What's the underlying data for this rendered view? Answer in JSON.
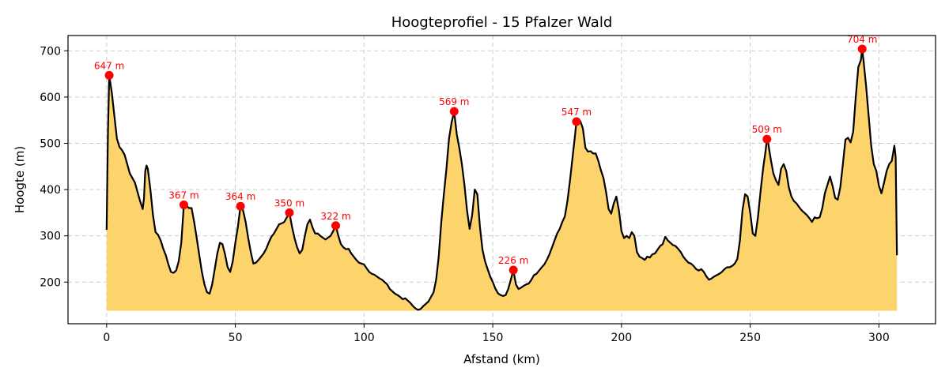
{
  "chart_data": {
    "type": "area",
    "title": "Hoogteprofiel - 15 Pfalzer Wald",
    "xlabel": "Afstand (km)",
    "ylabel": "Hoogte (m)",
    "xlim": [
      -15,
      322
    ],
    "ylim": [
      110,
      733
    ],
    "xticks": [
      0,
      50,
      100,
      150,
      200,
      250,
      300
    ],
    "yticks": [
      200,
      300,
      400,
      500,
      600,
      700
    ],
    "grid": true,
    "fill_base": 138,
    "colors": {
      "fill": "#fdd46b",
      "line": "#000000",
      "peak": "#ff0000",
      "grid": "#cccccc"
    },
    "profile": [
      [
        0,
        313
      ],
      [
        0.5,
        520
      ],
      [
        1,
        647
      ],
      [
        2,
        610
      ],
      [
        3,
        560
      ],
      [
        4,
        510
      ],
      [
        5,
        492
      ],
      [
        6,
        485
      ],
      [
        7,
        475
      ],
      [
        8,
        455
      ],
      [
        9,
        435
      ],
      [
        10,
        425
      ],
      [
        11,
        415
      ],
      [
        12,
        395
      ],
      [
        13,
        375
      ],
      [
        14,
        358
      ],
      [
        14.5,
        380
      ],
      [
        15,
        440
      ],
      [
        15.5,
        452
      ],
      [
        16,
        445
      ],
      [
        17,
        400
      ],
      [
        18,
        345
      ],
      [
        19,
        308
      ],
      [
        20,
        302
      ],
      [
        21,
        290
      ],
      [
        22,
        272
      ],
      [
        23,
        258
      ],
      [
        24,
        238
      ],
      [
        25,
        222
      ],
      [
        26,
        220
      ],
      [
        27,
        225
      ],
      [
        28,
        245
      ],
      [
        29,
        285
      ],
      [
        30,
        367
      ],
      [
        31,
        365
      ],
      [
        32,
        360
      ],
      [
        33,
        360
      ],
      [
        34,
        330
      ],
      [
        35,
        295
      ],
      [
        36,
        258
      ],
      [
        37,
        222
      ],
      [
        38,
        195
      ],
      [
        39,
        178
      ],
      [
        40,
        175
      ],
      [
        41,
        195
      ],
      [
        42,
        228
      ],
      [
        43,
        262
      ],
      [
        44,
        285
      ],
      [
        45,
        282
      ],
      [
        46,
        260
      ],
      [
        47,
        232
      ],
      [
        48,
        222
      ],
      [
        49,
        245
      ],
      [
        50,
        285
      ],
      [
        51,
        320
      ],
      [
        52,
        364
      ],
      [
        53,
        355
      ],
      [
        54,
        330
      ],
      [
        55,
        295
      ],
      [
        56,
        265
      ],
      [
        57,
        240
      ],
      [
        58,
        242
      ],
      [
        59,
        248
      ],
      [
        60,
        255
      ],
      [
        61,
        262
      ],
      [
        62,
        272
      ],
      [
        63,
        286
      ],
      [
        64,
        298
      ],
      [
        65,
        305
      ],
      [
        66,
        315
      ],
      [
        67,
        325
      ],
      [
        68,
        327
      ],
      [
        69,
        330
      ],
      [
        70,
        340
      ],
      [
        71,
        350
      ],
      [
        72,
        320
      ],
      [
        73,
        295
      ],
      [
        74,
        275
      ],
      [
        75,
        262
      ],
      [
        76,
        270
      ],
      [
        77,
        300
      ],
      [
        78,
        325
      ],
      [
        79,
        335
      ],
      [
        80,
        318
      ],
      [
        81,
        305
      ],
      [
        82,
        305
      ],
      [
        83,
        300
      ],
      [
        84,
        296
      ],
      [
        85,
        292
      ],
      [
        86,
        296
      ],
      [
        87,
        300
      ],
      [
        88,
        310
      ],
      [
        89,
        322
      ],
      [
        90,
        300
      ],
      [
        91,
        282
      ],
      [
        92,
        275
      ],
      [
        93,
        271
      ],
      [
        94,
        272
      ],
      [
        95,
        262
      ],
      [
        96,
        255
      ],
      [
        97,
        248
      ],
      [
        98,
        242
      ],
      [
        99,
        240
      ],
      [
        100,
        238
      ],
      [
        101,
        230
      ],
      [
        102,
        222
      ],
      [
        103,
        218
      ],
      [
        104,
        216
      ],
      [
        105,
        212
      ],
      [
        106,
        208
      ],
      [
        107,
        205
      ],
      [
        108,
        200
      ],
      [
        109,
        195
      ],
      [
        110,
        185
      ],
      [
        111,
        180
      ],
      [
        112,
        175
      ],
      [
        113,
        172
      ],
      [
        114,
        168
      ],
      [
        115,
        163
      ],
      [
        116,
        165
      ],
      [
        117,
        160
      ],
      [
        118,
        155
      ],
      [
        119,
        148
      ],
      [
        120,
        143
      ],
      [
        121,
        140
      ],
      [
        122,
        142
      ],
      [
        123,
        148
      ],
      [
        124,
        153
      ],
      [
        125,
        158
      ],
      [
        126,
        168
      ],
      [
        127,
        178
      ],
      [
        128,
        205
      ],
      [
        129,
        255
      ],
      [
        130,
        330
      ],
      [
        131,
        390
      ],
      [
        132,
        445
      ],
      [
        133,
        510
      ],
      [
        134,
        545
      ],
      [
        135,
        569
      ],
      [
        136,
        520
      ],
      [
        137,
        490
      ],
      [
        138,
        455
      ],
      [
        139,
        410
      ],
      [
        140,
        355
      ],
      [
        141,
        315
      ],
      [
        142,
        345
      ],
      [
        143,
        400
      ],
      [
        144,
        390
      ],
      [
        145,
        320
      ],
      [
        146,
        270
      ],
      [
        147,
        245
      ],
      [
        148,
        228
      ],
      [
        149,
        212
      ],
      [
        150,
        200
      ],
      [
        151,
        186
      ],
      [
        152,
        176
      ],
      [
        153,
        172
      ],
      [
        154,
        170
      ],
      [
        155,
        172
      ],
      [
        156,
        185
      ],
      [
        157,
        205
      ],
      [
        158,
        226
      ],
      [
        159,
        195
      ],
      [
        160,
        185
      ],
      [
        161,
        188
      ],
      [
        162,
        192
      ],
      [
        163,
        195
      ],
      [
        164,
        197
      ],
      [
        165,
        205
      ],
      [
        166,
        215
      ],
      [
        167,
        218
      ],
      [
        168,
        225
      ],
      [
        169,
        232
      ],
      [
        170,
        238
      ],
      [
        171,
        248
      ],
      [
        172,
        260
      ],
      [
        173,
        275
      ],
      [
        174,
        290
      ],
      [
        175,
        305
      ],
      [
        176,
        315
      ],
      [
        177,
        330
      ],
      [
        178,
        342
      ],
      [
        179,
        375
      ],
      [
        180,
        420
      ],
      [
        181,
        470
      ],
      [
        182,
        520
      ],
      [
        182.5,
        547
      ],
      [
        183,
        545
      ],
      [
        184,
        548
      ],
      [
        185,
        532
      ],
      [
        186,
        490
      ],
      [
        187,
        482
      ],
      [
        188,
        483
      ],
      [
        189,
        478
      ],
      [
        190,
        478
      ],
      [
        191,
        462
      ],
      [
        192,
        442
      ],
      [
        193,
        425
      ],
      [
        194,
        395
      ],
      [
        195,
        358
      ],
      [
        196,
        348
      ],
      [
        197,
        370
      ],
      [
        198,
        385
      ],
      [
        199,
        355
      ],
      [
        200,
        310
      ],
      [
        201,
        295
      ],
      [
        202,
        300
      ],
      [
        203,
        295
      ],
      [
        204,
        308
      ],
      [
        205,
        300
      ],
      [
        206,
        265
      ],
      [
        207,
        255
      ],
      [
        208,
        252
      ],
      [
        209,
        248
      ],
      [
        210,
        255
      ],
      [
        211,
        253
      ],
      [
        212,
        260
      ],
      [
        213,
        262
      ],
      [
        214,
        270
      ],
      [
        215,
        278
      ],
      [
        216,
        282
      ],
      [
        217,
        298
      ],
      [
        218,
        290
      ],
      [
        219,
        285
      ],
      [
        220,
        280
      ],
      [
        221,
        278
      ],
      [
        222,
        272
      ],
      [
        223,
        265
      ],
      [
        224,
        255
      ],
      [
        225,
        248
      ],
      [
        226,
        242
      ],
      [
        227,
        240
      ],
      [
        228,
        235
      ],
      [
        229,
        228
      ],
      [
        230,
        225
      ],
      [
        231,
        228
      ],
      [
        232,
        222
      ],
      [
        233,
        212
      ],
      [
        234,
        205
      ],
      [
        235,
        208
      ],
      [
        236,
        212
      ],
      [
        237,
        215
      ],
      [
        238,
        218
      ],
      [
        239,
        222
      ],
      [
        240,
        228
      ],
      [
        241,
        232
      ],
      [
        242,
        232
      ],
      [
        243,
        235
      ],
      [
        244,
        240
      ],
      [
        245,
        250
      ],
      [
        246,
        290
      ],
      [
        247,
        355
      ],
      [
        248,
        390
      ],
      [
        249,
        385
      ],
      [
        250,
        350
      ],
      [
        251,
        305
      ],
      [
        252,
        300
      ],
      [
        253,
        340
      ],
      [
        254,
        395
      ],
      [
        255,
        445
      ],
      [
        256,
        485
      ],
      [
        256.5,
        509
      ],
      [
        257,
        500
      ],
      [
        258,
        465
      ],
      [
        259,
        435
      ],
      [
        260,
        420
      ],
      [
        261,
        410
      ],
      [
        262,
        445
      ],
      [
        263,
        455
      ],
      [
        264,
        440
      ],
      [
        265,
        405
      ],
      [
        266,
        385
      ],
      [
        267,
        375
      ],
      [
        268,
        370
      ],
      [
        269,
        362
      ],
      [
        270,
        355
      ],
      [
        271,
        350
      ],
      [
        272,
        345
      ],
      [
        273,
        338
      ],
      [
        274,
        330
      ],
      [
        275,
        340
      ],
      [
        276,
        338
      ],
      [
        277,
        340
      ],
      [
        278,
        360
      ],
      [
        279,
        392
      ],
      [
        280,
        410
      ],
      [
        281,
        428
      ],
      [
        282,
        408
      ],
      [
        283,
        382
      ],
      [
        284,
        378
      ],
      [
        285,
        405
      ],
      [
        286,
        455
      ],
      [
        287,
        508
      ],
      [
        288,
        512
      ],
      [
        289,
        502
      ],
      [
        290,
        525
      ],
      [
        291,
        600
      ],
      [
        292,
        665
      ],
      [
        293,
        680
      ],
      [
        293.5,
        704
      ],
      [
        294,
        680
      ],
      [
        295,
        625
      ],
      [
        296,
        560
      ],
      [
        297,
        495
      ],
      [
        298,
        455
      ],
      [
        299,
        440
      ],
      [
        300,
        408
      ],
      [
        301,
        392
      ],
      [
        302,
        415
      ],
      [
        303,
        440
      ],
      [
        304,
        455
      ],
      [
        305,
        462
      ],
      [
        306,
        495
      ],
      [
        306.5,
        470
      ],
      [
        307,
        258
      ]
    ],
    "peaks": [
      {
        "x": 1,
        "y": 647,
        "label": "647 m"
      },
      {
        "x": 30,
        "y": 367,
        "label": "367 m"
      },
      {
        "x": 52,
        "y": 364,
        "label": "364 m"
      },
      {
        "x": 71,
        "y": 350,
        "label": "350 m"
      },
      {
        "x": 89,
        "y": 322,
        "label": "322 m"
      },
      {
        "x": 135,
        "y": 569,
        "label": "569 m"
      },
      {
        "x": 158,
        "y": 226,
        "label": "226 m"
      },
      {
        "x": 182.5,
        "y": 547,
        "label": "547 m"
      },
      {
        "x": 256.5,
        "y": 509,
        "label": "509 m"
      },
      {
        "x": 293.5,
        "y": 704,
        "label": "704 m"
      }
    ]
  }
}
